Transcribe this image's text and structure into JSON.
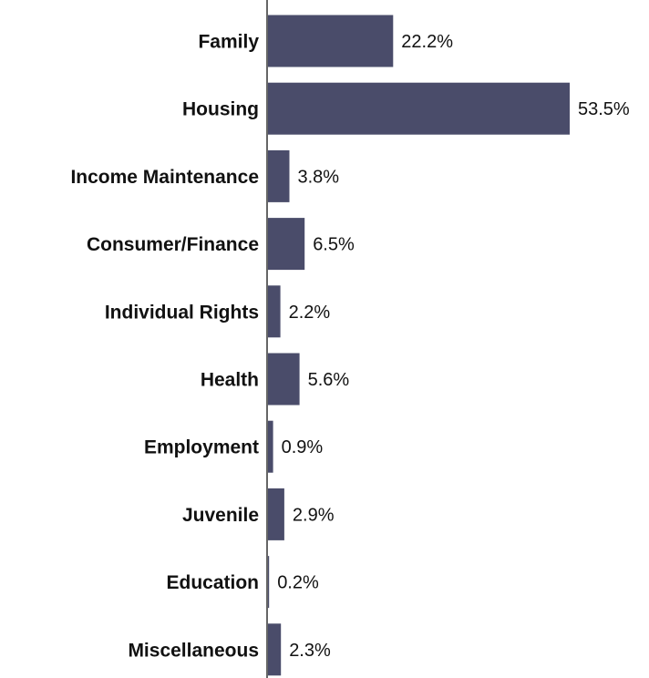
{
  "chart_data": {
    "type": "bar",
    "orientation": "horizontal",
    "categories": [
      "Family",
      "Housing",
      "Income Maintenance",
      "Consumer/Finance",
      "Individual Rights",
      "Health",
      "Employment",
      "Juvenile",
      "Education",
      "Miscellaneous"
    ],
    "values": [
      22.2,
      53.5,
      3.8,
      6.5,
      2.2,
      5.6,
      0.9,
      2.9,
      0.2,
      2.3
    ],
    "value_labels": [
      "22.2%",
      "53.5%",
      "3.8%",
      "6.5%",
      "2.2%",
      "5.6%",
      "0.9%",
      "2.9%",
      "0.2%",
      "2.3%"
    ],
    "unit": "%",
    "xlim": [
      0,
      53.5
    ],
    "grid": false,
    "legend": "none",
    "bar_color": "#4a4c6a"
  }
}
